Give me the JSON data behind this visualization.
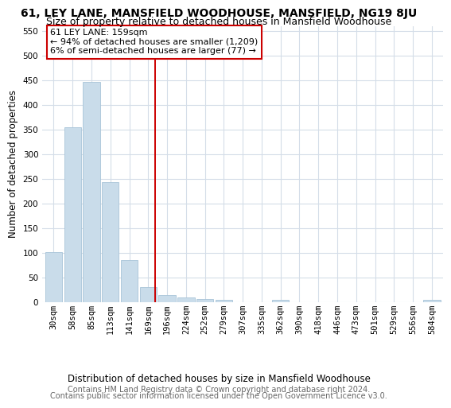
{
  "title": "61, LEY LANE, MANSFIELD WOODHOUSE, MANSFIELD, NG19 8JU",
  "subtitle": "Size of property relative to detached houses in Mansfield Woodhouse",
  "xlabel": "Distribution of detached houses by size in Mansfield Woodhouse",
  "ylabel": "Number of detached properties",
  "footer_line1": "Contains HM Land Registry data © Crown copyright and database right 2024.",
  "footer_line2": "Contains public sector information licensed under the Open Government Licence v3.0.",
  "bar_labels": [
    "30sqm",
    "58sqm",
    "85sqm",
    "113sqm",
    "141sqm",
    "169sqm",
    "196sqm",
    "224sqm",
    "252sqm",
    "279sqm",
    "307sqm",
    "335sqm",
    "362sqm",
    "390sqm",
    "418sqm",
    "446sqm",
    "473sqm",
    "501sqm",
    "529sqm",
    "556sqm",
    "584sqm"
  ],
  "bar_values": [
    102,
    355,
    447,
    243,
    86,
    30,
    14,
    10,
    6,
    5,
    0,
    0,
    5,
    0,
    0,
    0,
    0,
    0,
    0,
    0,
    5
  ],
  "bar_color": "#c9dcea",
  "bar_edge_color": "#a8c4d8",
  "grid_color": "#d4dde8",
  "vline_x": 5.35,
  "annotation_text": "61 LEY LANE: 159sqm\n← 94% of detached houses are smaller (1,209)\n6% of semi-detached houses are larger (77) →",
  "annotation_box_color": "#ffffff",
  "annotation_box_edge": "#cc0000",
  "vline_color": "#cc0000",
  "ylim": [
    0,
    560
  ],
  "yticks": [
    0,
    50,
    100,
    150,
    200,
    250,
    300,
    350,
    400,
    450,
    500,
    550
  ],
  "title_fontsize": 10,
  "subtitle_fontsize": 9,
  "xlabel_fontsize": 8.5,
  "ylabel_fontsize": 8.5,
  "tick_fontsize": 7.5,
  "footer_fontsize": 7,
  "annot_fontsize": 8
}
